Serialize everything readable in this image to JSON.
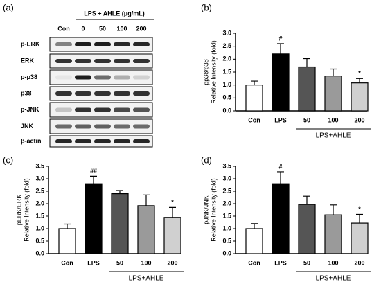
{
  "blot": {
    "panel_label": "(a)",
    "header": "LPS + AHLE (μg/mL)",
    "lanes": [
      "Con",
      "0",
      "50",
      "100",
      "200"
    ],
    "rows": [
      "p-ERK",
      "ERK",
      "p-p38",
      "p38",
      "p-JNK",
      "JNK",
      "β-actin"
    ]
  },
  "chart_data": [
    {
      "type": "bar",
      "panel_label": "(b)",
      "ylabel": [
        "pp38/p38",
        "Relative Intensity (fold)"
      ],
      "categories": [
        "Con",
        "LPS",
        "50",
        "100",
        "200"
      ],
      "group_label": "LPS+AHLE",
      "values": [
        1.0,
        2.2,
        1.7,
        1.35,
        1.08
      ],
      "errors": [
        0.15,
        0.4,
        0.32,
        0.27,
        0.17
      ],
      "significance": [
        null,
        "#",
        null,
        null,
        "*"
      ],
      "colors": [
        "#ffffff",
        "#000000",
        "#555555",
        "#9a9a9a",
        "#d0d0d0"
      ],
      "ylim": [
        0,
        3.0
      ],
      "yticks": [
        {
          "value": 0,
          "label": "0.0"
        },
        {
          "value": 0.5,
          "label": "0.5"
        },
        {
          "value": 1,
          "label": "1.0"
        },
        {
          "value": 1.5,
          "label": "1.5"
        },
        {
          "value": 2,
          "label": "2.0"
        },
        {
          "value": 2.5,
          "label": "2.5"
        },
        {
          "value": 3,
          "label": "3.0"
        }
      ]
    },
    {
      "type": "bar",
      "panel_label": "(c)",
      "ylabel": [
        "pERK/ERK",
        "Relative Intensity (fold)"
      ],
      "categories": [
        "Con",
        "LPS",
        "50",
        "100",
        "200"
      ],
      "group_label": "LPS+AHLE",
      "values": [
        1.0,
        2.8,
        2.4,
        1.92,
        1.45
      ],
      "errors": [
        0.18,
        0.3,
        0.13,
        0.43,
        0.4
      ],
      "significance": [
        null,
        "##",
        null,
        null,
        "*"
      ],
      "colors": [
        "#ffffff",
        "#000000",
        "#555555",
        "#9a9a9a",
        "#d0d0d0"
      ],
      "ylim": [
        0,
        3.5
      ],
      "yticks": [
        {
          "value": 0,
          "label": "0.0"
        },
        {
          "value": 0.5,
          "label": "0.5"
        },
        {
          "value": 1,
          "label": "1.0"
        },
        {
          "value": 1.5,
          "label": "1.5"
        },
        {
          "value": 2,
          "label": "2.0"
        },
        {
          "value": 2.5,
          "label": "2.5"
        },
        {
          "value": 3,
          "label": "3.0"
        },
        {
          "value": 3.5,
          "label": "3.5"
        }
      ]
    },
    {
      "type": "bar",
      "panel_label": "(d)",
      "ylabel": [
        "pJNK/JNK",
        "Relative Intensity (fold)"
      ],
      "categories": [
        "Con",
        "LPS",
        "50",
        "100",
        "200"
      ],
      "group_label": "LPS+AHLE",
      "values": [
        1.0,
        2.8,
        1.97,
        1.55,
        1.22
      ],
      "errors": [
        0.2,
        0.48,
        0.33,
        0.4,
        0.35
      ],
      "significance": [
        null,
        "#",
        null,
        null,
        "*"
      ],
      "colors": [
        "#ffffff",
        "#000000",
        "#555555",
        "#9a9a9a",
        "#d0d0d0"
      ],
      "ylim": [
        0,
        3.5
      ],
      "yticks": [
        {
          "value": 0,
          "label": "0.0"
        },
        {
          "value": 0.5,
          "label": "0.5"
        },
        {
          "value": 1,
          "label": "1.0"
        },
        {
          "value": 1.5,
          "label": "1.5"
        },
        {
          "value": 2,
          "label": "2.0"
        },
        {
          "value": 2.5,
          "label": "2.5"
        },
        {
          "value": 3,
          "label": "3.0"
        },
        {
          "value": 3.5,
          "label": "3.5"
        }
      ]
    }
  ]
}
